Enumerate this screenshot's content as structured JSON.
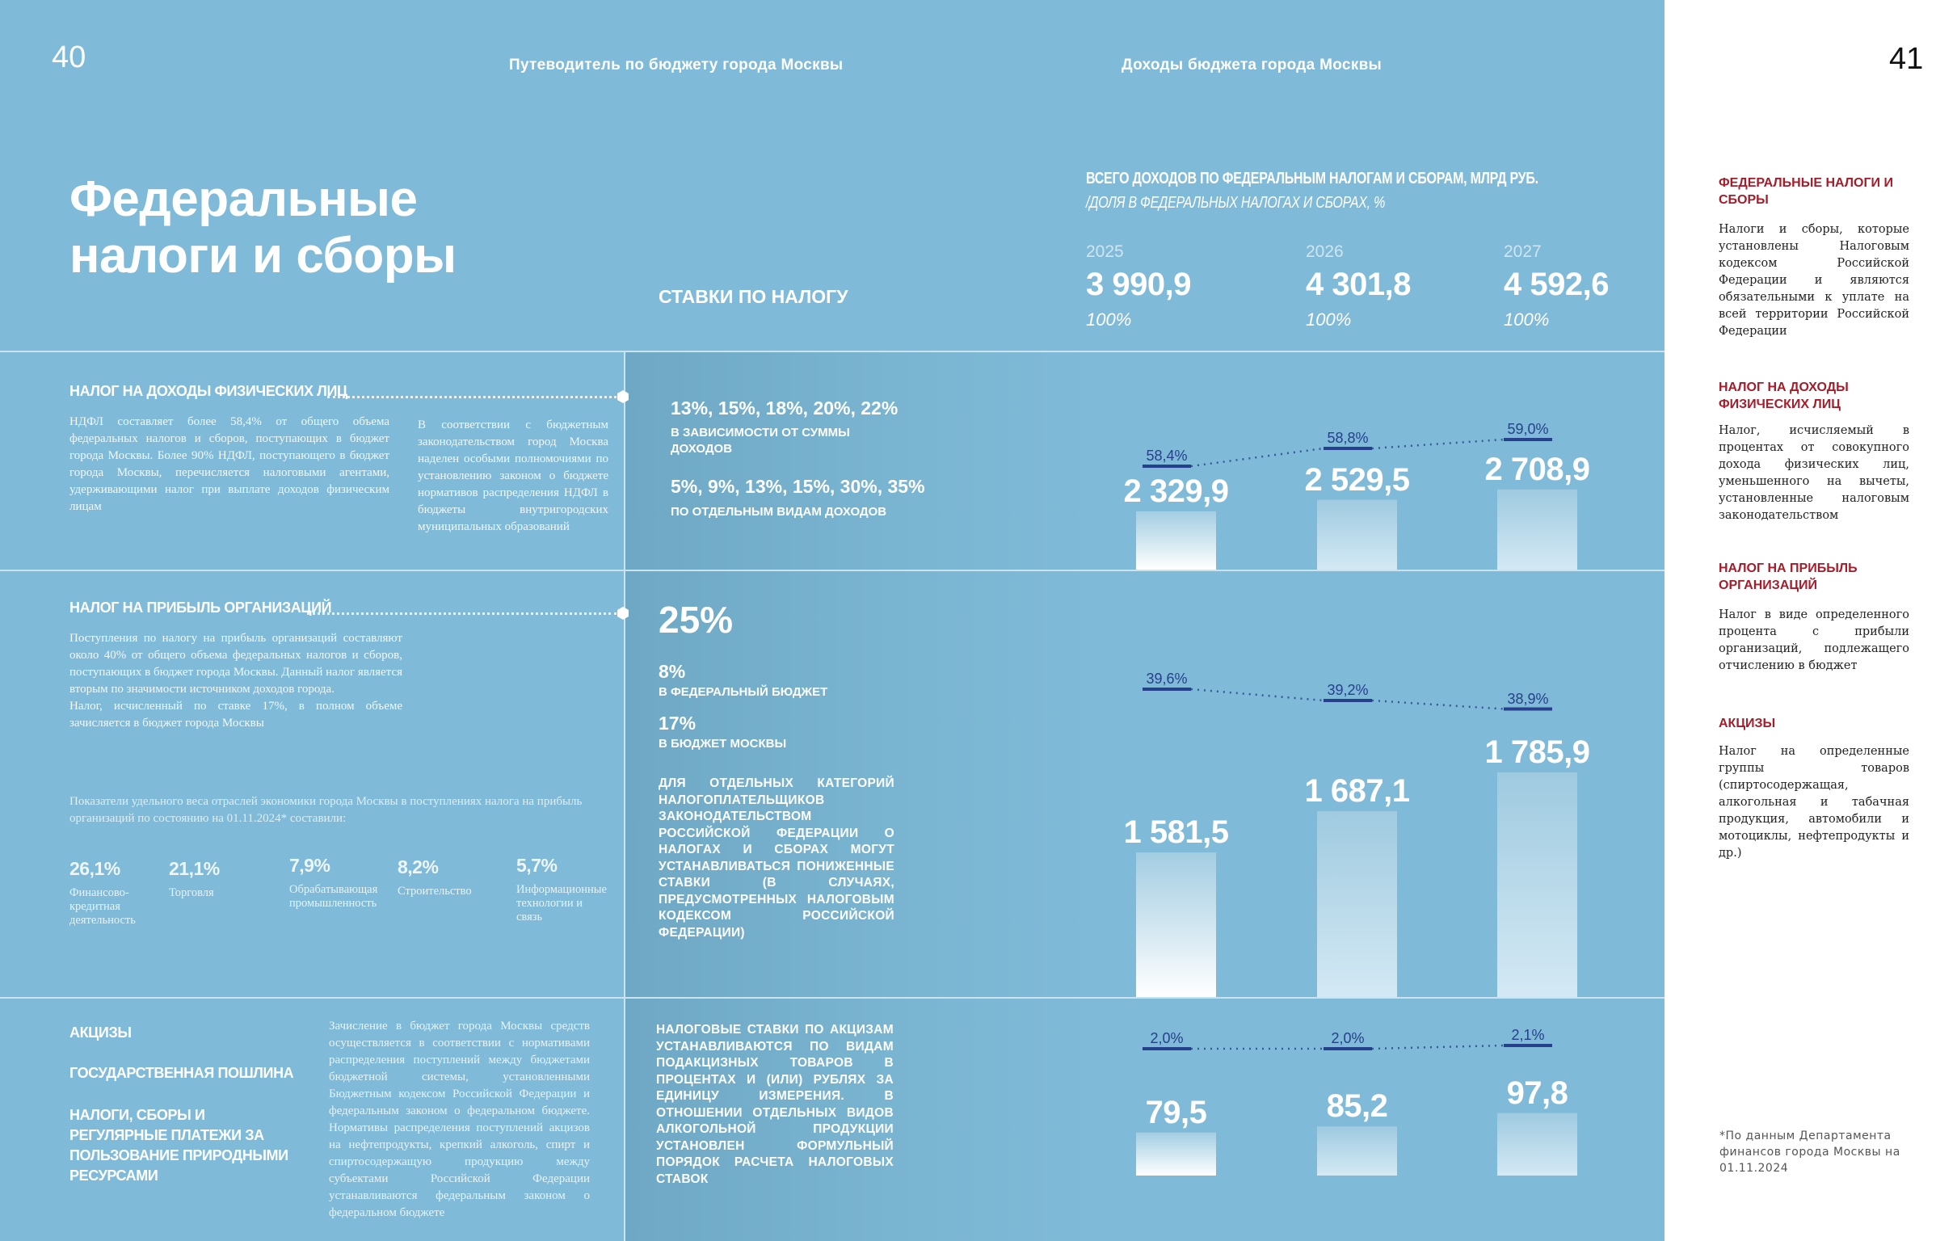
{
  "header": {
    "page_left": "40",
    "page_right": "41",
    "guide_title": "Путеводитель по бюджету города Москвы",
    "section_title": "Доходы бюджета города Москвы"
  },
  "title": "Федеральные налоги и сборы",
  "rates_heading": "СТАВКИ ПО НАЛОГУ",
  "summary": {
    "heading": "ВСЕГО ДОХОДОВ ПО ФЕДЕРАЛЬНЫМ НАЛОГАМ И СБОРАМ, МЛРД РУБ.",
    "subheading": "/ДОЛЯ В ФЕДЕРАЛЬНЫХ НАЛОГАХ И СБОРАХ, %",
    "years": [
      {
        "year": "2025",
        "total": "3 990,9",
        "share": "100%"
      },
      {
        "year": "2026",
        "total": "4 301,8",
        "share": "100%"
      },
      {
        "year": "2027",
        "total": "4 592,6",
        "share": "100%"
      }
    ]
  },
  "ndfl": {
    "heading": "НАЛОГ НА ДОХОДЫ ФИЗИЧЕСКИХ ЛИЦ",
    "text1": "НДФЛ составляет более 58,4% от общего объема федеральных налогов и сборов, поступающих в бюджет города Москвы. Более 90% НДФЛ, поступающего в бюджет города Москвы, перечисляется налоговыми агентами, удерживающими налог при выплате доходов физическим лицам",
    "text2": "В соответствии с бюджетным законодательством город Москва наделен особыми полномочиями по установлению законом о бюджете нормативов распределения НДФЛ в бюджеты внутригородских муниципальных образований",
    "rates1": "13%, 15%, 18%, 20%, 22%",
    "rates1_note": "В ЗАВИСИМОСТИ ОТ СУММЫ ДОХОДОВ",
    "rates2": "5%, 9%, 13%, 15%, 30%, 35%",
    "rates2_note": "ПО ОТДЕЛЬНЫМ ВИДАМ ДОХОДОВ"
  },
  "profit": {
    "heading": "НАЛОГ НА ПРИБЫЛЬ ОРГАНИЗАЦИЙ",
    "text": "Поступления по налогу на прибыль организаций составляют около 40% от общего объема федеральных налогов и сборов, поступающих в бюджет города Москвы. Данный налог является вторым по значимости источником доходов города.",
    "text_b": "Налог, исчисленный по ставке 17%, в полном объеме зачисляется в бюджет города Москвы",
    "indicators_intro": "Показатели удельного веса отраслей экономики города Москвы в поступлениях налога на прибыль организаций по состоянию на 01.11.2024* составили:",
    "sectors": [
      {
        "value": "26,1%",
        "label": "Финансово-кредитная деятельность"
      },
      {
        "value": "21,1%",
        "label": "Торговля"
      },
      {
        "value": "7,9%",
        "label": "Обрабатывающая промышленность"
      },
      {
        "value": "8,2%",
        "label": "Строительство"
      },
      {
        "value": "5,7%",
        "label": "Информационные технологии и связь"
      }
    ],
    "rate_main": "25%",
    "rate_fed": "8%",
    "rate_fed_note": "В ФЕДЕРАЛЬНЫЙ БЮДЖЕТ",
    "rate_city": "17%",
    "rate_city_note": "В БЮДЖЕТ МОСКВЫ",
    "reduced_note": "ДЛЯ ОТДЕЛЬНЫХ КАТЕГОРИЙ НАЛОГОПЛАТЕЛЬЩИКОВ ЗАКОНОДАТЕЛЬСТВОМ РОССИЙСКОЙ ФЕДЕРАЦИИ О НАЛОГАХ И СБОРАХ МОГУТ УСТАНАВЛИВАТЬСЯ ПОНИЖЕННЫЕ СТАВКИ (В СЛУЧАЯХ, ПРЕДУСМОТРЕННЫХ НАЛОГОВЫМ КОДЕКСОМ РОССИЙСКОЙ ФЕДЕРАЦИИ)"
  },
  "excise": {
    "headings": [
      "АКЦИЗЫ",
      "ГОСУДАРСТВЕННАЯ ПОШЛИНА",
      "НАЛОГИ, СБОРЫ И РЕГУЛЯРНЫЕ ПЛАТЕЖИ ЗА ПОЛЬЗОВАНИЕ ПРИРОДНЫМИ РЕСУРСАМИ"
    ],
    "text": "Зачисление в бюджет города Москвы средств осуществляется в соответствии с нормативами распределения поступлений между бюджетами бюджетной системы, установленными Бюджетным кодексом Российской Федерации и федеральным законом о федеральном бюджете. Нормативы распределения поступлений акцизов на нефтепродукты, крепкий алкоголь, спирт и спиртосодержащую продукцию между субъектами Российской Федерации устанавливаются федеральным законом о федеральном бюджете",
    "rates_note": "НАЛОГОВЫЕ СТАВКИ ПО АКЦИЗАМ УСТАНАВЛИВАЮТСЯ ПО ВИДАМ ПОДАКЦИЗНЫХ ТОВАРОВ В ПРОЦЕНТАХ И (ИЛИ) РУБЛЯХ ЗА ЕДИНИЦУ ИЗМЕРЕНИЯ. В ОТНОШЕНИИ ОТДЕЛЬНЫХ ВИДОВ АЛКОГОЛЬНОЙ ПРОДУКЦИИ УСТАНОВЛЕН ФОРМУЛЬНЫЙ ПОРЯДОК РАСЧЕТА НАЛОГОВЫХ СТАВОК"
  },
  "glossary": [
    {
      "term": "ФЕДЕРАЛЬНЫЕ НАЛОГИ И СБОРЫ",
      "definition": "Налоги и сборы, которые установлены Налоговым кодексом Российской Федерации и являются обязательными к уплате на всей территории Российской Федерации"
    },
    {
      "term": "НАЛОГ НА ДОХОДЫ ФИЗИЧЕСКИХ ЛИЦ",
      "definition": "Налог, исчисляемый в процентах от совокупного дохода физических лиц, уменьшенного на вычеты, установленные налоговым законодательством"
    },
    {
      "term": "НАЛОГ НА ПРИБЫЛЬ ОРГАНИЗАЦИЙ",
      "definition": "Налог в виде определенного процента с прибыли организаций, подлежащего отчислению в бюджет"
    },
    {
      "term": "АКЦИЗЫ",
      "definition": "Налог на определенные группы товаров (спиртосодержащая, алкогольная и табачная продукция, автомобили и мотоциклы, нефтепродукты и др.)"
    }
  ],
  "footnote": "*По данным Департамента финансов города Москвы на 01.11.2024",
  "colors": {
    "panel": "#7fbad8",
    "accent_red": "#a51c2a",
    "share_line": "#27408b"
  },
  "chart_data": [
    {
      "type": "bar",
      "title": "НАЛОГ НА ДОХОДЫ ФИЗИЧЕСКИХ ЛИЦ",
      "categories": [
        "2025",
        "2026",
        "2027"
      ],
      "values": [
        2329.9,
        2529.5,
        2708.9
      ],
      "labels": [
        "2 329,9",
        "2 529,5",
        "2 708,9"
      ],
      "share": [
        58.4,
        58.8,
        59.0
      ],
      "share_labels": [
        "58,4%",
        "58,8%",
        "59,0%"
      ],
      "ylim": [
        1318,
        3113
      ]
    },
    {
      "type": "bar",
      "title": "НАЛОГ НА ПРИБЫЛЬ ОРГАНИЗАЦИЙ",
      "categories": [
        "2025",
        "2026",
        "2027"
      ],
      "values": [
        1581.5,
        1687.1,
        1785.9
      ],
      "labels": [
        "1 581,5",
        "1 687,1",
        "1 785,9"
      ],
      "share": [
        39.6,
        39.2,
        38.9
      ],
      "share_labels": [
        "39,6%",
        "39,2%",
        "38,9%"
      ],
      "ylim": [
        1212,
        2038
      ]
    },
    {
      "type": "bar",
      "title": "АКЦИЗЫ",
      "categories": [
        "2025",
        "2026",
        "2027"
      ],
      "values": [
        79.5,
        85.2,
        97.8
      ],
      "labels": [
        "79,5",
        "85,2",
        "97,8"
      ],
      "share": [
        2.0,
        2.0,
        2.1
      ],
      "share_labels": [
        "2,0%",
        "2,0%",
        "2,1%"
      ],
      "ylim": [
        39,
        115
      ]
    }
  ]
}
